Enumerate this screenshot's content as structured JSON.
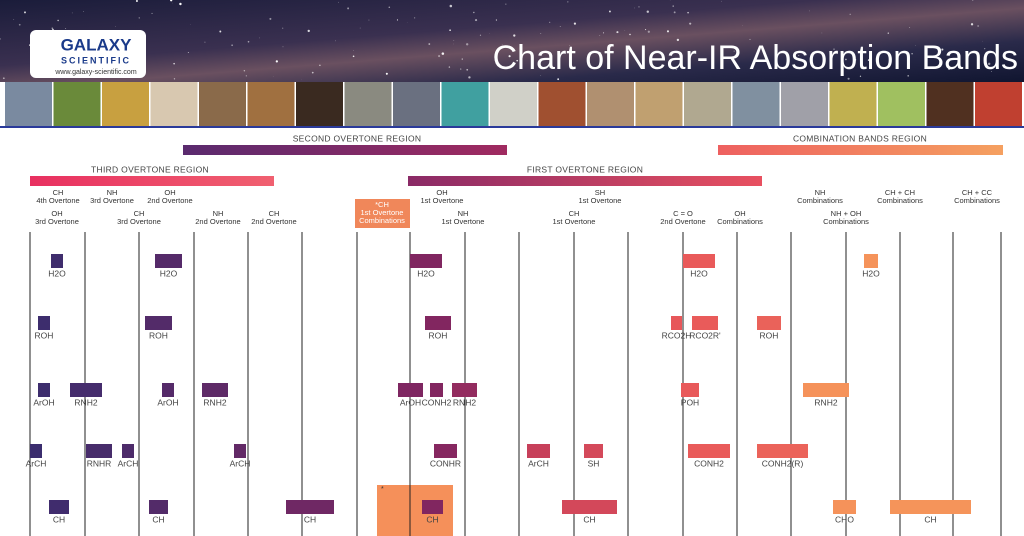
{
  "header": {
    "logo": {
      "name": "GALAXY",
      "sub": "SCIENTIFIC",
      "url": "www.galaxy-scientific.com"
    },
    "title": "Chart of Near-IR Absorption Bands"
  },
  "regions": [
    "SECOND OVERTONE REGION",
    "COMBINATION BANDS REGION",
    "THIRD OVERTONE REGION",
    "FIRST OVERTONE REGION"
  ],
  "columns": [
    [
      "CH",
      "4th Overtone"
    ],
    [
      "NH",
      "3rd Overtone"
    ],
    [
      "OH",
      "2nd Overtone"
    ],
    [
      "*CH",
      "1st Overtone",
      "Combinations"
    ],
    [
      "OH",
      "1st Overtone"
    ],
    [
      "SH",
      "1st Overtone"
    ],
    [
      "NH",
      "Combinations"
    ],
    [
      "CH + CH",
      "Combinations"
    ],
    [
      "CH + CC",
      "Combinations"
    ],
    [
      "OH",
      "3rd Overtone"
    ],
    [
      "CH",
      "3rd Overtone"
    ],
    [
      "NH",
      "2nd Overtone"
    ],
    [
      "CH",
      "2nd Overtone"
    ],
    [
      "NH",
      "1st Overtone"
    ],
    [
      "CH",
      "1st Overtone"
    ],
    [
      "C = O",
      "2nd Overtone"
    ],
    [
      "OH",
      "Combinations"
    ],
    [
      "NH + OH",
      "Combinations"
    ]
  ],
  "bands": [
    [
      "H2O",
      "H2O",
      "H2O",
      "H2O",
      "H2O"
    ],
    [
      "ROH",
      "ROH",
      "ROH",
      "RCO2H",
      "RCO2R'",
      "ROH"
    ],
    [
      "ArOH",
      "RNH2",
      "ArOH",
      "RNH2",
      "ArOH",
      "CONH2",
      "RNH2",
      "POH",
      "RNH2"
    ],
    [
      "ArCH",
      "RNHR",
      "ArCH",
      "ArCH",
      "CONHR",
      "ArCH",
      "SH",
      "CONH2",
      "CONH2(R)"
    ],
    [
      "CH",
      "CH",
      "CH",
      "CH",
      "CH",
      "CHO",
      "CH"
    ]
  ],
  "note": "*"
}
